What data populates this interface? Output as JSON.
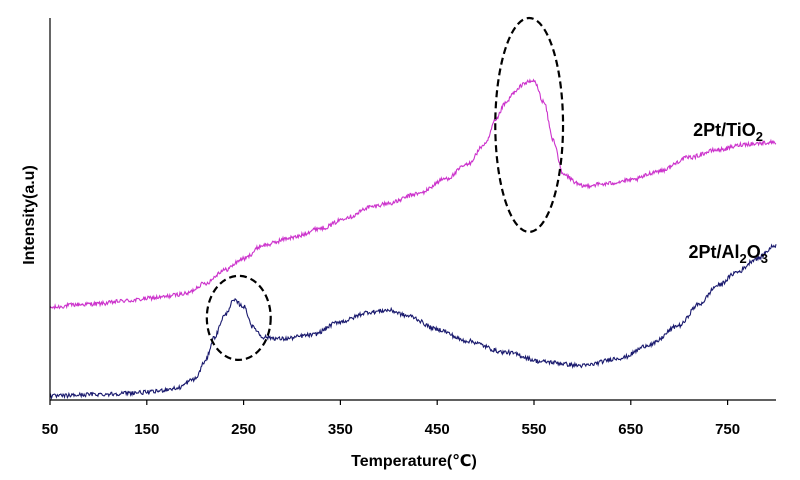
{
  "chart_data": {
    "type": "line",
    "xlabel": "Temperature(℃)",
    "ylabel": "Intensity(a.u)",
    "xlim": [
      50,
      800
    ],
    "ylim": [
      0,
      100
    ],
    "y_ticks_shown": false,
    "x_ticks": [
      50,
      150,
      250,
      350,
      450,
      550,
      650,
      750
    ],
    "x_tick_labels": [
      "50",
      "150",
      "250",
      "350",
      "450",
      "550",
      "650",
      "750"
    ],
    "grid": false,
    "legend": "none (series labelled inline at right)",
    "series": [
      {
        "name": "2Pt/TiO2",
        "label_main": "2Pt/TiO",
        "label_sub": "2",
        "color": "#cc33cc",
        "x": [
          50,
          80,
          100,
          130,
          160,
          190,
          210,
          230,
          250,
          270,
          300,
          330,
          360,
          380,
          400,
          430,
          460,
          480,
          500,
          510,
          520,
          530,
          540,
          550,
          560,
          570,
          580,
          600,
          620,
          650,
          680,
          710,
          740,
          770,
          800
        ],
        "y": [
          24.2,
          25.0,
          25.2,
          26.0,
          26.8,
          27.8,
          30.5,
          34.0,
          37.0,
          40.5,
          42.5,
          45.0,
          48.0,
          50.5,
          51.5,
          54.0,
          58.0,
          61.5,
          67.0,
          73.0,
          77.5,
          80.5,
          83.0,
          83.5,
          78.0,
          68.0,
          59.0,
          56.0,
          56.5,
          57.5,
          60.0,
          63.5,
          65.5,
          67.0,
          67.5
        ]
      },
      {
        "name": "2Pt/Al2O3",
        "label_main": "2Pt/Al",
        "label_sub1": "2",
        "label_mid": "O",
        "label_sub2": "3",
        "color": "#1a1a6e",
        "x": [
          50,
          100,
          150,
          180,
          200,
          210,
          220,
          230,
          240,
          250,
          260,
          270,
          290,
          320,
          350,
          380,
          400,
          420,
          450,
          480,
          520,
          560,
          600,
          640,
          670,
          700,
          720,
          740,
          760,
          780,
          800
        ],
        "y": [
          1.0,
          1.5,
          2.0,
          3.0,
          5.5,
          10.0,
          16.5,
          22.0,
          26.0,
          24.5,
          19.0,
          16.5,
          16.0,
          17.0,
          20.5,
          23.0,
          23.5,
          22.0,
          18.5,
          15.5,
          12.5,
          10.0,
          9.0,
          11.0,
          14.5,
          19.5,
          25.0,
          30.0,
          33.5,
          37.0,
          40.5
        ]
      }
    ],
    "annotations": [
      {
        "type": "dashed-ellipse",
        "target": "2Pt/TiO2 peak",
        "cx": 545,
        "cy": 72,
        "rx": 35,
        "ry": 28
      },
      {
        "type": "dashed-ellipse",
        "target": "2Pt/Al2O3 peak",
        "cx": 245,
        "cy": 21.5,
        "rx": 33,
        "ry": 11
      }
    ]
  }
}
